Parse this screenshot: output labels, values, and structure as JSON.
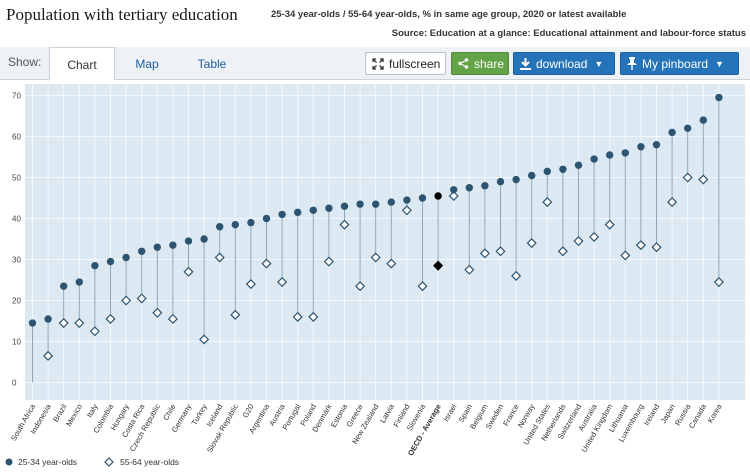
{
  "header": {
    "title": "Population with tertiary education",
    "subtitle": "25-34 year-olds / 55-64 year-olds, % in same age group, 2020 or latest available",
    "source": "Source: Education at a glance: Educational attainment and labour-force status"
  },
  "toolbar": {
    "show_label": "Show:",
    "tabs": [
      "Chart",
      "Map",
      "Table"
    ],
    "fullscreen_label": "fullscreen",
    "share_label": "share",
    "download_label": "download",
    "pinboard_label": "My pinboard"
  },
  "colors": {
    "plot_bg": "#dde9f2",
    "series_young": "#2d5470",
    "series_old": "#2d5470",
    "highlight": "#000000",
    "connector": "#8ea6b8"
  },
  "chart_data": {
    "type": "scatter",
    "title": "Population with tertiary education",
    "subtitle": "25-34 year-olds / 55-64 year-olds, % in same age group, 2020 or latest available",
    "ylim": [
      0,
      72
    ],
    "yticks": [
      0,
      10,
      20,
      30,
      40,
      50,
      60,
      70
    ],
    "grid": true,
    "legend_position": "bottom-left",
    "highlight_category": "OECD - Average",
    "categories": [
      "South Africa",
      "Indonesia",
      "Brazil",
      "Mexico",
      "Italy",
      "Colombia",
      "Hungary",
      "Costa Rica",
      "Czech Republic",
      "Chile",
      "Germany",
      "Turkey",
      "Iceland",
      "Slovak Republic",
      "G20",
      "Argentina",
      "Austria",
      "Portugal",
      "Poland",
      "Denmark",
      "Estonia",
      "Greece",
      "New Zealand",
      "Latvia",
      "Finland",
      "Slovenia",
      "OECD - Average",
      "Israel",
      "Spain",
      "Belgium",
      "Sweden",
      "France",
      "Norway",
      "United States",
      "Netherlands",
      "Switzerland",
      "Australia",
      "United Kingdom",
      "Lithuania",
      "Luxembourg",
      "Ireland",
      "Japan",
      "Russia",
      "Canada",
      "Korea"
    ],
    "series": [
      {
        "name": "25-34 year-olds",
        "marker": "circle",
        "values": [
          14.5,
          15.5,
          23.5,
          24.5,
          28.5,
          29.5,
          30.5,
          32,
          33,
          33.5,
          34.5,
          35,
          38,
          38.5,
          39,
          40,
          41,
          41.5,
          42,
          42.5,
          43,
          43.5,
          43.5,
          44,
          44.5,
          45,
          45.5,
          47,
          47.5,
          48,
          49,
          49.5,
          50.5,
          51.5,
          52,
          53,
          54.5,
          55.5,
          56,
          57.5,
          58,
          61,
          62,
          64,
          69.5
        ]
      },
      {
        "name": "55-64 year-olds",
        "marker": "diamond",
        "values": [
          null,
          6.5,
          14.5,
          14.5,
          12.5,
          15.5,
          20,
          20.5,
          17,
          15.5,
          27,
          10.5,
          30.5,
          16.5,
          24,
          29,
          24.5,
          16,
          16,
          29.5,
          38.5,
          23.5,
          30.5,
          29,
          42,
          23.5,
          28.5,
          45.5,
          27.5,
          31.5,
          32,
          26,
          34,
          44,
          32,
          34.5,
          35.5,
          38.5,
          31,
          33.5,
          33,
          44,
          50,
          49.5,
          24.5
        ]
      }
    ]
  }
}
